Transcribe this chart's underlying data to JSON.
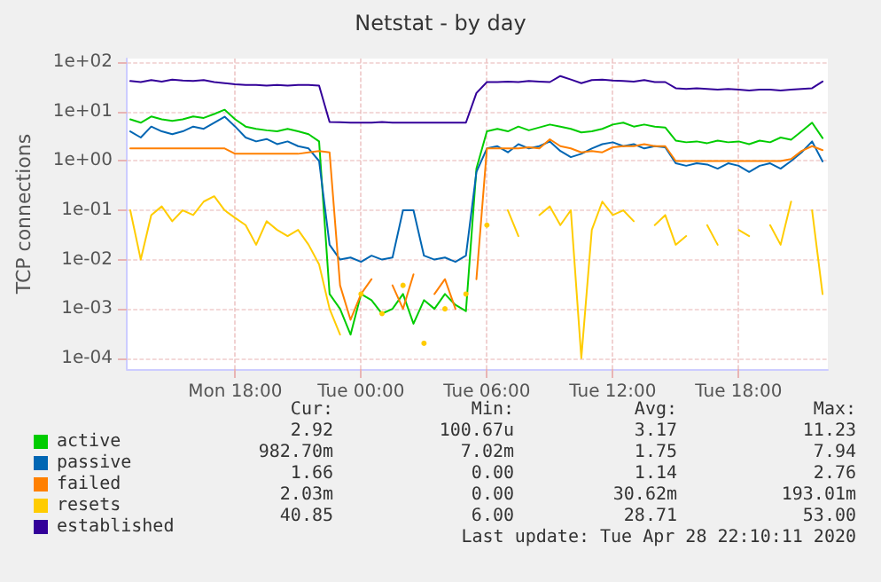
{
  "chart_data": {
    "type": "line",
    "title": "Netstat - by day",
    "ylabel": "TCP connections",
    "log": "y",
    "grid": true,
    "legend": "bottom",
    "marker": "none",
    "line_style": "solid",
    "x": [
      "2020-04-27T13:00",
      "2020-04-27T13:30",
      "2020-04-27T14:00",
      "2020-04-27T14:30",
      "2020-04-27T15:00",
      "2020-04-27T15:30",
      "2020-04-27T16:00",
      "2020-04-27T16:30",
      "2020-04-27T17:00",
      "2020-04-27T17:30",
      "2020-04-27T18:00",
      "2020-04-27T18:30",
      "2020-04-27T19:00",
      "2020-04-27T19:30",
      "2020-04-27T20:00",
      "2020-04-27T20:30",
      "2020-04-27T21:00",
      "2020-04-27T21:30",
      "2020-04-27T22:00",
      "2020-04-27T22:30",
      "2020-04-27T23:00",
      "2020-04-27T23:30",
      "2020-04-28T00:00",
      "2020-04-28T00:30",
      "2020-04-28T01:00",
      "2020-04-28T01:30",
      "2020-04-28T02:00",
      "2020-04-28T02:30",
      "2020-04-28T03:00",
      "2020-04-28T03:30",
      "2020-04-28T04:00",
      "2020-04-28T04:30",
      "2020-04-28T05:00",
      "2020-04-28T05:30",
      "2020-04-28T06:00",
      "2020-04-28T06:30",
      "2020-04-28T07:00",
      "2020-04-28T07:30",
      "2020-04-28T08:00",
      "2020-04-28T08:30",
      "2020-04-28T09:00",
      "2020-04-28T09:30",
      "2020-04-28T10:00",
      "2020-04-28T10:30",
      "2020-04-28T11:00",
      "2020-04-28T11:30",
      "2020-04-28T12:00",
      "2020-04-28T12:30",
      "2020-04-28T13:00",
      "2020-04-28T13:30",
      "2020-04-28T14:00",
      "2020-04-28T14:30",
      "2020-04-28T15:00",
      "2020-04-28T15:30",
      "2020-04-28T16:00",
      "2020-04-28T16:30",
      "2020-04-28T17:00",
      "2020-04-28T17:30",
      "2020-04-28T18:00",
      "2020-04-28T18:30",
      "2020-04-28T19:00",
      "2020-04-28T19:30",
      "2020-04-28T20:00",
      "2020-04-28T20:30",
      "2020-04-28T21:00",
      "2020-04-28T21:30",
      "2020-04-28T22:00"
    ],
    "xlim": [
      "2020-04-27T12:50",
      "2020-04-28T22:15"
    ],
    "xticks": [
      {
        "value": "2020-04-27T18:00",
        "label": "Mon 18:00"
      },
      {
        "value": "2020-04-28T00:00",
        "label": "Tue 00:00"
      },
      {
        "value": "2020-04-28T06:00",
        "label": "Tue 06:00"
      },
      {
        "value": "2020-04-28T12:00",
        "label": "Tue 12:00"
      },
      {
        "value": "2020-04-28T18:00",
        "label": "Tue 18:00"
      }
    ],
    "ylim": [
      6e-05,
      120
    ],
    "yticks": [
      {
        "value": 0.0001,
        "label": "1e-04"
      },
      {
        "value": 0.001,
        "label": "1e-03"
      },
      {
        "value": 0.01,
        "label": "1e-02"
      },
      {
        "value": 0.1,
        "label": "1e-01"
      },
      {
        "value": 1,
        "label": "1e+00"
      },
      {
        "value": 10,
        "label": "1e+01"
      },
      {
        "value": 100,
        "label": "1e+02"
      }
    ],
    "series": [
      {
        "name": "active",
        "color": "#00cc00",
        "values": [
          7,
          6,
          8,
          7,
          6.5,
          7,
          8,
          7.5,
          9,
          11,
          7,
          5,
          4.5,
          4.2,
          4,
          4.5,
          4,
          3.5,
          2.5,
          0.002,
          0.001,
          0.0003,
          0.002,
          0.0015,
          0.0008,
          0.001,
          0.002,
          0.0005,
          0.0015,
          0.001,
          0.002,
          0.0012,
          0.0009,
          0.7,
          4,
          4.5,
          4,
          5,
          4.2,
          4.8,
          5.5,
          5,
          4.5,
          3.8,
          4,
          4.5,
          5.5,
          6,
          5,
          5.5,
          5,
          4.8,
          2.6,
          2.4,
          2.5,
          2.3,
          2.6,
          2.4,
          2.5,
          2.2,
          2.6,
          2.4,
          3,
          2.7,
          4,
          6,
          2.92
        ]
      },
      {
        "name": "passive",
        "color": "#0066b3",
        "values": [
          4,
          3,
          5,
          4,
          3.5,
          4,
          5,
          4.5,
          6,
          7.94,
          5,
          3,
          2.5,
          2.8,
          2.2,
          2.5,
          2,
          1.8,
          1,
          0.02,
          0.01,
          0.011,
          0.009,
          0.012,
          0.01,
          0.011,
          0.1,
          0.1,
          0.012,
          0.01,
          0.011,
          0.009,
          0.012,
          0.6,
          1.8,
          2,
          1.5,
          2.2,
          1.8,
          2,
          2.5,
          1.6,
          1.2,
          1.4,
          1.8,
          2.2,
          2.4,
          2,
          2.2,
          1.8,
          2,
          1.9,
          0.9,
          0.8,
          0.9,
          0.85,
          0.7,
          0.9,
          0.8,
          0.6,
          0.8,
          0.9,
          0.7,
          1,
          1.5,
          2.5,
          0.98
        ]
      },
      {
        "name": "failed",
        "color": "#ff8000",
        "values": [
          1.8,
          1.8,
          1.8,
          1.8,
          1.8,
          1.8,
          1.8,
          1.8,
          1.8,
          1.8,
          1.4,
          1.4,
          1.4,
          1.4,
          1.4,
          1.4,
          1.4,
          1.5,
          1.6,
          1.5,
          0.003,
          0.0006,
          0.002,
          0.004,
          null,
          0.003,
          0.001,
          0.005,
          null,
          0.002,
          0.004,
          0.001,
          null,
          0.004,
          1.8,
          1.8,
          1.8,
          1.8,
          1.9,
          1.8,
          2.76,
          2,
          1.8,
          1.5,
          1.6,
          1.5,
          1.9,
          2,
          2,
          2.2,
          2,
          2,
          1,
          1,
          1,
          1,
          1,
          1,
          1,
          1,
          1,
          1,
          1,
          1.1,
          1.6,
          2,
          1.66
        ]
      },
      {
        "name": "resets",
        "color": "#ffcc00",
        "values": [
          0.1,
          0.01,
          0.08,
          0.12,
          0.06,
          0.1,
          0.08,
          0.15,
          0.193,
          0.1,
          0.07,
          0.05,
          0.02,
          0.06,
          0.04,
          0.03,
          0.04,
          0.02,
          0.008,
          0.001,
          0.0003,
          null,
          0.002,
          null,
          0.0008,
          null,
          0.003,
          null,
          0.0002,
          null,
          0.001,
          null,
          0.002,
          null,
          0.05,
          null,
          0.1,
          0.03,
          null,
          0.08,
          0.12,
          0.05,
          0.1,
          0.0001,
          0.04,
          0.15,
          0.08,
          0.1,
          0.06,
          null,
          0.05,
          0.08,
          0.02,
          0.03,
          null,
          0.05,
          0.02,
          null,
          0.04,
          0.03,
          null,
          0.05,
          0.02,
          0.15,
          null,
          0.1,
          0.002
        ]
      },
      {
        "name": "established",
        "color": "#330099",
        "values": [
          42,
          40,
          44,
          41,
          45,
          43,
          42,
          44,
          40,
          38,
          36,
          35,
          35,
          34,
          35,
          34,
          35,
          35,
          34,
          6.2,
          6.1,
          6,
          6,
          6,
          6.2,
          6,
          6,
          6,
          6,
          6,
          6,
          6,
          6,
          24,
          40,
          40,
          41,
          40,
          42,
          41,
          40,
          53,
          45,
          38,
          44,
          45,
          43,
          42,
          41,
          44,
          40,
          40,
          30,
          29,
          30,
          29,
          28,
          29,
          28,
          27,
          28,
          28,
          27,
          28,
          29,
          30,
          41
        ]
      }
    ],
    "annotations": [
      "Cur:",
      "Min:",
      "Avg:",
      "Max:",
      "2.92",
      "100.67u",
      "3.17",
      "11.23",
      "982.70m",
      "7.02m",
      "1.75",
      "7.94",
      "1.66",
      "0.00",
      "1.14",
      "2.76",
      "2.03m",
      "0.00",
      "30.62m",
      "193.01m",
      "40.85",
      "6.00",
      "28.71",
      "53.00",
      "Last update: Tue Apr 28 22:10:11 2020"
    ]
  }
}
